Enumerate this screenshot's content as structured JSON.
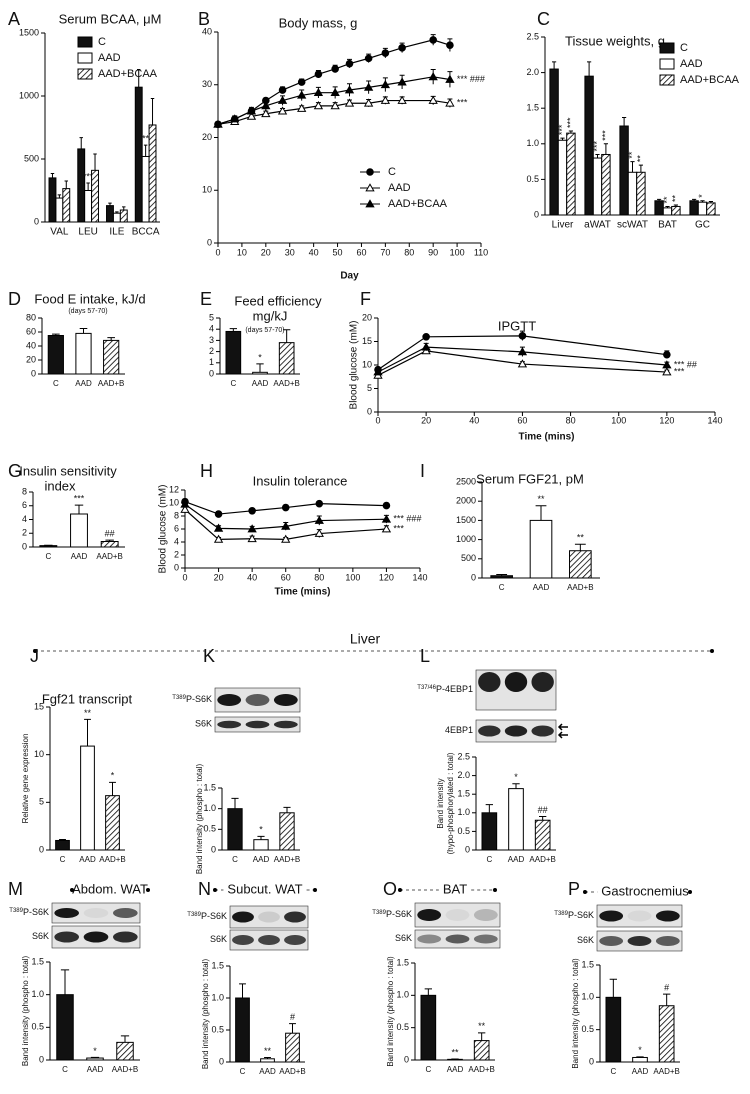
{
  "section_label": "Liver",
  "chart_data": [
    {
      "panel": "A",
      "type": "bar",
      "title": "Serum BCAA, μM",
      "categories": [
        "VAL",
        "LEU",
        "ILE",
        "BCCA"
      ],
      "series": [
        {
          "name": "C",
          "color": "#111111",
          "hatched": false,
          "values": [
            350,
            580,
            130,
            1070
          ],
          "errors": [
            35,
            90,
            20,
            140
          ],
          "annotations": [
            null,
            null,
            null,
            null
          ]
        },
        {
          "name": "AAD",
          "color": "#ffffff",
          "hatched": false,
          "values": [
            190,
            250,
            70,
            520
          ],
          "errors": [
            25,
            60,
            10,
            90
          ],
          "annotations": [
            null,
            "***",
            null,
            "**"
          ]
        },
        {
          "name": "AAD+BCAA",
          "color": "#ffffff",
          "hatched": true,
          "values": [
            265,
            410,
            95,
            770
          ],
          "errors": [
            60,
            130,
            25,
            210
          ],
          "annotations": [
            null,
            null,
            null,
            null
          ]
        }
      ],
      "ylim": [
        0,
        1500
      ],
      "yticks": [
        0,
        500,
        1000,
        1500
      ],
      "legend": "upper right"
    },
    {
      "panel": "B",
      "type": "line",
      "title": "Body mass, g",
      "xlabel": "Day",
      "x": [
        0,
        7,
        14,
        20,
        27,
        35,
        42,
        49,
        55,
        63,
        70,
        77,
        90,
        97
      ],
      "series": [
        {
          "name": "C",
          "color": "#000000",
          "marker": "circle",
          "filled": true,
          "values": [
            22.5,
            23.5,
            25,
            27,
            29,
            30.5,
            32,
            33,
            34,
            35,
            36,
            37,
            38.5,
            37.5
          ],
          "errors": [
            0.4,
            0.4,
            0.5,
            0.5,
            0.6,
            0.6,
            0.7,
            0.7,
            0.8,
            0.8,
            0.9,
            0.9,
            1,
            1.2
          ],
          "end_label": null
        },
        {
          "name": "AAD",
          "color": "#000000",
          "marker": "triangle",
          "filled": false,
          "values": [
            22.5,
            23,
            24,
            24.5,
            25,
            25.5,
            26,
            26,
            26.5,
            26.5,
            27,
            27,
            27,
            26.5
          ],
          "errors": [
            0.4,
            0.4,
            0.5,
            0.5,
            0.5,
            0.5,
            0.6,
            0.6,
            0.6,
            0.7,
            0.7,
            0.7,
            0.8,
            0.8
          ],
          "end_label": "***"
        },
        {
          "name": "AAD+BCAA",
          "color": "#000000",
          "marker": "triangle",
          "filled": true,
          "values": [
            22.5,
            23.5,
            25,
            26,
            27,
            28,
            28.5,
            28.5,
            29,
            29.5,
            30,
            30.5,
            31.5,
            31
          ],
          "errors": [
            0.5,
            0.6,
            0.7,
            0.8,
            0.9,
            1,
            1,
            1.1,
            1.2,
            1.2,
            1.3,
            1.3,
            1.4,
            1.5
          ],
          "end_label": "*** ###"
        }
      ],
      "xlim": [
        0,
        110
      ],
      "xticks": [
        0,
        10,
        20,
        30,
        40,
        50,
        60,
        70,
        80,
        90,
        100,
        110
      ],
      "ylim": [
        0,
        40
      ],
      "yticks": [
        0,
        10,
        20,
        30,
        40
      ],
      "legend": "lower right"
    },
    {
      "panel": "C",
      "type": "bar",
      "title": "Tissue weights, g",
      "categories": [
        "Liver",
        "aWAT",
        "scWAT",
        "BAT",
        "GC"
      ],
      "series": [
        {
          "name": "C",
          "color": "#111111",
          "hatched": false,
          "values": [
            2.05,
            1.95,
            1.25,
            0.2,
            0.2
          ],
          "errors": [
            0.1,
            0.2,
            0.12,
            0.02,
            0.02
          ],
          "annotations": [
            null,
            null,
            null,
            null,
            null
          ]
        },
        {
          "name": "AAD",
          "color": "#ffffff",
          "hatched": false,
          "values": [
            1.05,
            0.8,
            0.6,
            0.1,
            0.18
          ],
          "errors": [
            0.03,
            0.05,
            0.15,
            0.02,
            0.02
          ],
          "annotations": [
            "***",
            "***",
            "**",
            "**",
            "*"
          ]
        },
        {
          "name": "AAD+BCAA",
          "color": "#ffffff",
          "hatched": true,
          "values": [
            1.15,
            0.85,
            0.6,
            0.12,
            0.17
          ],
          "errors": [
            0.03,
            0.15,
            0.1,
            0.02,
            0.02
          ],
          "annotations": [
            "***",
            "***",
            "**",
            "**",
            null
          ]
        }
      ],
      "ylim": [
        0,
        2.5
      ],
      "yticks": [
        0,
        0.5,
        {
          "value": 1,
          "label": "1.0"
        },
        1.5,
        {
          "value": 2,
          "label": "2.0"
        },
        2.5
      ],
      "legend": "upper right"
    },
    {
      "panel": "D",
      "type": "bar",
      "title": "Food E intake, kJ/d",
      "subtitle": "(days 57-70)",
      "categories": [
        "C",
        "AAD",
        "AAD+B"
      ],
      "values": [
        55,
        58,
        48
      ],
      "errors": [
        2,
        7,
        4
      ],
      "colors": [
        "#111111",
        "#ffffff",
        "#ffffff"
      ],
      "hatched": [
        false,
        false,
        true
      ],
      "annotations": [
        null,
        null,
        null
      ],
      "ylim": [
        0,
        80
      ],
      "yticks": [
        0,
        20,
        40,
        60,
        80
      ]
    },
    {
      "panel": "E",
      "type": "bar",
      "title": [
        "Feed efficiency",
        "mg/kJ"
      ],
      "subtitle": "(days 57-70)",
      "categories": [
        "C",
        "AAD",
        "AAD+B"
      ],
      "values": [
        3.8,
        0.15,
        2.8
      ],
      "errors": [
        0.25,
        0.75,
        1.15
      ],
      "colors": [
        "#111111",
        "#ffffff",
        "#ffffff"
      ],
      "hatched": [
        false,
        false,
        true
      ],
      "annotations": [
        null,
        "*",
        null
      ],
      "ylim": [
        0,
        5
      ],
      "yticks": [
        0,
        1,
        2,
        3,
        4,
        5
      ]
    },
    {
      "panel": "F",
      "type": "line",
      "title": "IPGTT",
      "xlabel": "Time (mins)",
      "ylabel": "Blood glucose (mM)",
      "x": [
        0,
        20,
        60,
        120
      ],
      "series": [
        {
          "color": "#000000",
          "marker": "circle",
          "filled": true,
          "values": [
            9,
            16,
            16.2,
            12.2
          ],
          "errors": [
            0.5,
            0.3,
            1,
            0.8
          ],
          "end_label": null
        },
        {
          "color": "#000000",
          "marker": "triangle",
          "filled": false,
          "values": [
            7.8,
            13,
            10.2,
            8.5
          ],
          "errors": [
            0.5,
            0.5,
            0.5,
            0.4
          ],
          "end_label": "***"
        },
        {
          "color": "#000000",
          "marker": "triangle",
          "filled": true,
          "values": [
            8.5,
            13.8,
            12.8,
            10
          ],
          "errors": [
            0.6,
            0.8,
            1,
            0.6
          ],
          "end_label": "*** ##"
        }
      ],
      "xlim": [
        0,
        140
      ],
      "xticks": [
        0,
        20,
        40,
        60,
        80,
        100,
        120,
        140
      ],
      "ylim": [
        0,
        20
      ],
      "yticks": [
        0,
        5,
        10,
        15,
        20
      ]
    },
    {
      "panel": "G",
      "type": "bar",
      "title": [
        "Insulin sensitivity",
        "index"
      ],
      "categories": [
        "C",
        "AAD",
        "AAD+B"
      ],
      "values": [
        0.2,
        4.8,
        0.8
      ],
      "errors": [
        0.05,
        1.3,
        0.2
      ],
      "colors": [
        "#111111",
        "#ffffff",
        "#ffffff"
      ],
      "hatched": [
        false,
        false,
        true
      ],
      "annotations": [
        null,
        "***",
        "##"
      ],
      "ylim": [
        0,
        8
      ],
      "yticks": [
        0,
        2,
        4,
        6,
        8
      ]
    },
    {
      "panel": "H",
      "type": "line",
      "title": "Insulin tolerance",
      "xlabel": "Time (mins)",
      "ylabel": "Blood glucose (mM)",
      "x": [
        0,
        20,
        40,
        60,
        80,
        120
      ],
      "series": [
        {
          "color": "#000000",
          "marker": "circle",
          "filled": true,
          "values": [
            10.2,
            8.3,
            8.8,
            9.3,
            9.9,
            9.6
          ],
          "errors": [
            0.4,
            0.4,
            0.3,
            0.4,
            0.3,
            0.4
          ],
          "end_label": null
        },
        {
          "color": "#000000",
          "marker": "triangle",
          "filled": false,
          "values": [
            9,
            4.4,
            4.5,
            4.4,
            5.3,
            6
          ],
          "errors": [
            0.5,
            0.3,
            0.4,
            0.3,
            0.6,
            0.5
          ],
          "end_label": "***"
        },
        {
          "color": "#000000",
          "marker": "triangle",
          "filled": true,
          "values": [
            9.8,
            6.1,
            6,
            6.4,
            7.3,
            7.5
          ],
          "errors": [
            0.4,
            0.4,
            0.4,
            0.6,
            0.7,
            0.6
          ],
          "end_label": "*** ###"
        }
      ],
      "xlim": [
        0,
        140
      ],
      "xticks": [
        0,
        20,
        40,
        60,
        80,
        100,
        120,
        140
      ],
      "ylim": [
        0,
        12
      ],
      "yticks": [
        0,
        2,
        4,
        6,
        8,
        10,
        12
      ]
    },
    {
      "panel": "I",
      "type": "bar",
      "title": "Serum FGF21, pM",
      "categories": [
        "C",
        "AAD",
        "AAD+B"
      ],
      "values": [
        60,
        1500,
        710
      ],
      "errors": [
        30,
        380,
        170
      ],
      "colors": [
        "#111111",
        "#ffffff",
        "#ffffff"
      ],
      "hatched": [
        false,
        false,
        true
      ],
      "annotations": [
        null,
        "**",
        "**"
      ],
      "ylim": [
        0,
        2500
      ],
      "yticks": [
        0,
        500,
        1000,
        1500,
        2000,
        2500
      ]
    },
    {
      "panel": "J",
      "type": "bar",
      "title": "Fgf21 transcript",
      "ylabel": "Relative gene expression",
      "categories": [
        "C",
        "AAD",
        "AAD+B"
      ],
      "values": [
        1,
        10.9,
        5.7
      ],
      "errors": [
        0.1,
        2.8,
        1.4
      ],
      "colors": [
        "#111111",
        "#ffffff",
        "#ffffff"
      ],
      "hatched": [
        false,
        false,
        true
      ],
      "annotations": [
        null,
        "**",
        "*"
      ],
      "ylim": [
        0,
        15
      ],
      "yticks": [
        0,
        5,
        10,
        15
      ]
    },
    {
      "panel": "K",
      "type": "bar",
      "ylabel": "Band intensity (phospho : total)",
      "blot_labels": [
        {
          "sup": "T389",
          "text": "P-S6K"
        },
        {
          "text": "S6K"
        }
      ],
      "categories": [
        "C",
        "AAD",
        "AAD+B"
      ],
      "values": [
        1,
        0.25,
        0.9
      ],
      "errors": [
        0.25,
        0.08,
        0.13
      ],
      "colors": [
        "#111111",
        "#ffffff",
        "#ffffff"
      ],
      "hatched": [
        false,
        false,
        true
      ],
      "annotations": [
        null,
        "*",
        null
      ],
      "ylim": [
        0,
        1.5
      ],
      "yticks": [
        0,
        0.5,
        {
          "value": 1,
          "label": "1.0"
        },
        1.5
      ]
    },
    {
      "panel": "L",
      "type": "bar",
      "ylabel": [
        "Band intensity",
        "(hypo-phosphorylated : total)"
      ],
      "blot_labels": [
        {
          "sup": "T37/46",
          "text": "P-4EBP1"
        },
        {
          "text": "4EBP1"
        }
      ],
      "categories": [
        "C",
        "AAD",
        "AAD+B"
      ],
      "values": [
        1,
        1.65,
        0.8
      ],
      "errors": [
        0.22,
        0.13,
        0.1
      ],
      "colors": [
        "#111111",
        "#ffffff",
        "#ffffff"
      ],
      "hatched": [
        false,
        false,
        true
      ],
      "annotations": [
        null,
        "*",
        "##"
      ],
      "ylim": [
        0,
        2.5
      ],
      "yticks": [
        0,
        0.5,
        {
          "value": 1,
          "label": "1.0"
        },
        1.5,
        {
          "value": 2,
          "label": "2.0"
        },
        2.5
      ]
    },
    {
      "panel": "M",
      "type": "bar",
      "title": "Abdom. WAT",
      "ylabel": "Band intensity (phospho : total)",
      "blot_labels": [
        {
          "sup": "T389",
          "text": "P-S6K"
        },
        {
          "text": "S6K"
        }
      ],
      "categories": [
        "C",
        "AAD",
        "AAD+B"
      ],
      "values": [
        1,
        0.03,
        0.27
      ],
      "errors": [
        0.38,
        0.01,
        0.1
      ],
      "colors": [
        "#111111",
        "#ffffff",
        "#ffffff"
      ],
      "hatched": [
        false,
        false,
        true
      ],
      "annotations": [
        null,
        "*",
        null
      ],
      "ylim": [
        0,
        1.5
      ],
      "yticks": [
        0,
        0.5,
        {
          "value": 1,
          "label": "1.0"
        },
        1.5
      ]
    },
    {
      "panel": "N",
      "type": "bar",
      "title": "Subcut. WAT",
      "ylabel": "Band intensity (phospho : total)",
      "blot_labels": [
        {
          "sup": "T389",
          "text": "P-S6K"
        },
        {
          "text": "S6K"
        }
      ],
      "categories": [
        "C",
        "AAD",
        "AAD+B"
      ],
      "values": [
        1,
        0.05,
        0.45
      ],
      "errors": [
        0.22,
        0.02,
        0.15
      ],
      "colors": [
        "#111111",
        "#ffffff",
        "#ffffff"
      ],
      "hatched": [
        false,
        false,
        true
      ],
      "annotations": [
        null,
        "**",
        "#"
      ],
      "ylim": [
        0,
        1.5
      ],
      "yticks": [
        0,
        0.5,
        {
          "value": 1,
          "label": "1.0"
        },
        1.5
      ]
    },
    {
      "panel": "O",
      "type": "bar",
      "title": "BAT",
      "ylabel": "Band intensity (phospho : total)",
      "blot_labels": [
        {
          "sup": "T389",
          "text": "P-S6K"
        },
        {
          "text": "S6K"
        }
      ],
      "categories": [
        "C",
        "AAD",
        "AAD+B"
      ],
      "values": [
        1,
        0.01,
        0.3
      ],
      "errors": [
        0.1,
        0.005,
        0.12
      ],
      "colors": [
        "#111111",
        "#ffffff",
        "#ffffff"
      ],
      "hatched": [
        false,
        false,
        true
      ],
      "annotations": [
        null,
        "**",
        "**"
      ],
      "ylim": [
        0,
        1.5
      ],
      "yticks": [
        0,
        0.5,
        {
          "value": 1,
          "label": "1.0"
        },
        1.5
      ]
    },
    {
      "panel": "P",
      "type": "bar",
      "title": "Gastrocnemius",
      "ylabel": "Band intensity (phospho : total)",
      "blot_labels": [
        {
          "sup": "T389",
          "text": "P-S6K"
        },
        {
          "text": "S6K"
        }
      ],
      "categories": [
        "C",
        "AAD",
        "AAD+B"
      ],
      "values": [
        1,
        0.07,
        0.87
      ],
      "errors": [
        0.28,
        0.01,
        0.18
      ],
      "colors": [
        "#111111",
        "#ffffff",
        "#ffffff"
      ],
      "hatched": [
        false,
        false,
        true
      ],
      "annotations": [
        null,
        "*",
        "#"
      ],
      "ylim": [
        0,
        1.5
      ],
      "yticks": [
        0,
        0.5,
        {
          "value": 1,
          "label": "1.0"
        },
        1.5
      ]
    }
  ]
}
